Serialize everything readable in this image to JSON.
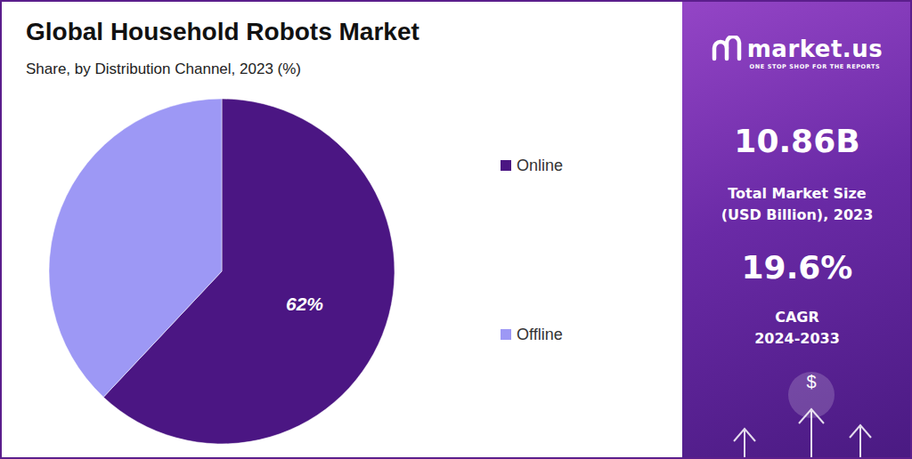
{
  "chart_data": {
    "type": "pie",
    "title": "Global Household Robots Market",
    "subtitle": "Share, by Distribution Channel, 2023 (%)",
    "categories": [
      "Online",
      "Offline"
    ],
    "values": [
      62,
      38
    ],
    "value_labels": [
      "62%",
      null
    ],
    "colors": [
      "#4b1683",
      "#9d98f5"
    ],
    "data_labels": true,
    "legend": "right"
  },
  "panel": {
    "brand": "market.us",
    "tagline": "ONE STOP SHOP FOR THE REPORTS",
    "stats": [
      {
        "value": "10.86B",
        "label": [
          "Total Market Size",
          "(USD Billion), 2023"
        ]
      },
      {
        "value": "19.6%",
        "label": [
          "CAGR",
          "2024-2033"
        ]
      }
    ],
    "icon": "$"
  }
}
